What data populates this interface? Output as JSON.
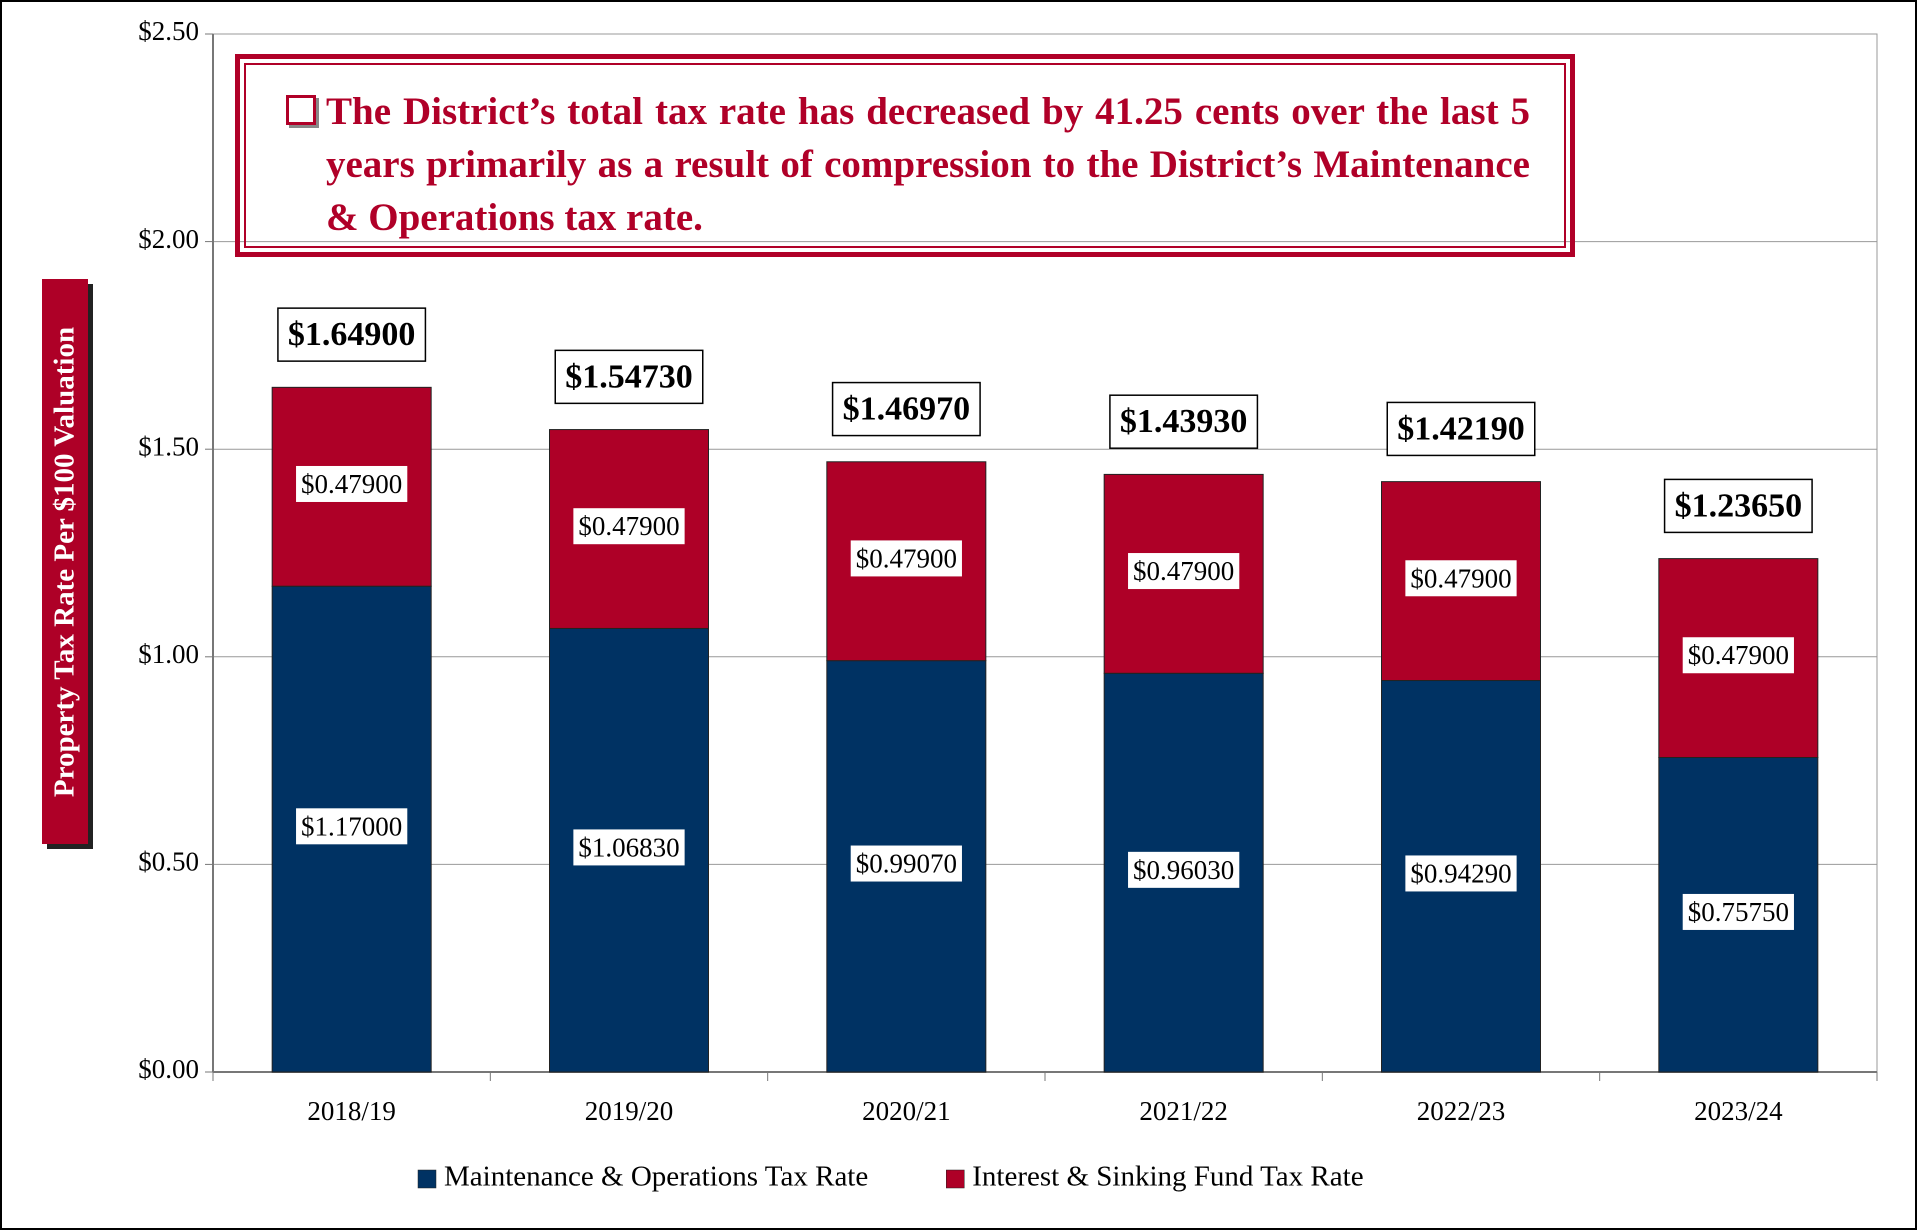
{
  "chart_data": {
    "type": "stacked_bar",
    "annotation": "The District’s total tax rate has decreased by 41.25 cents over the last 5 years primarily as a result of compression to the District’s Maintenance & Operations tax rate.",
    "y_label": "Property Tax Rate Per $100 Valuation",
    "categories": [
      "2018/19",
      "2019/20",
      "2020/21",
      "2021/22",
      "2022/23",
      "2023/24"
    ],
    "series": [
      {
        "name": "Maintenance & Operations Tax Rate",
        "color": "#003263",
        "values": [
          1.17,
          1.0683,
          0.9907,
          0.9603,
          0.9429,
          0.7575
        ],
        "value_labels": [
          "$1.17000",
          "$1.06830",
          "$0.99070",
          "$0.96030",
          "$0.94290",
          "$0.75750"
        ]
      },
      {
        "name": "Interest & Sinking Fund Tax Rate",
        "color": "#ae0027",
        "values": [
          0.479,
          0.479,
          0.479,
          0.479,
          0.479,
          0.479
        ],
        "value_labels": [
          "$0.47900",
          "$0.47900",
          "$0.47900",
          "$0.47900",
          "$0.47900",
          "$0.47900"
        ]
      }
    ],
    "totals": [
      1.649,
      1.5473,
      1.4697,
      1.4393,
      1.4219,
      1.2365
    ],
    "total_labels": [
      "$1.64900",
      "$1.54730",
      "$1.46970",
      "$1.43930",
      "$1.42190",
      "$1.23650"
    ],
    "ylim": [
      0,
      2.5
    ],
    "yticks": [
      {
        "value": 0,
        "label": "$0.00"
      },
      {
        "value": 0.5,
        "label": "$0.50"
      },
      {
        "value": 1,
        "label": "$1.00"
      },
      {
        "value": 1.5,
        "label": "$1.50"
      },
      {
        "value": 2,
        "label": "$2.00"
      },
      {
        "value": 2.5,
        "label": "$2.50"
      }
    ],
    "grid": true
  }
}
